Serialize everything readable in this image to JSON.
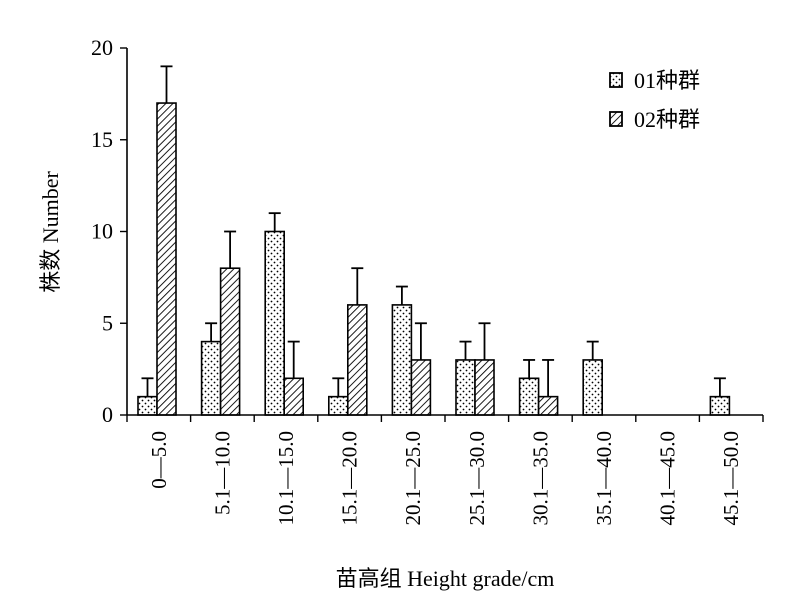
{
  "chart_data": {
    "type": "bar",
    "title": "",
    "xlabel": "苗高组 Height grade/cm",
    "ylabel": "株数 Number",
    "ylim": [
      0,
      20
    ],
    "yticks": [
      0,
      5,
      10,
      15,
      20
    ],
    "grid": false,
    "legend_position": "top-right",
    "categories": [
      "0—5.0",
      "5.1—10.0",
      "10.1—15.0",
      "15.1—20.0",
      "20.1—25.0",
      "25.1—30.0",
      "30.1—35.0",
      "35.1—40.0",
      "40.1—45.0",
      "45.1—50.0"
    ],
    "series": [
      {
        "name": "01种群",
        "pattern": "dots",
        "values": [
          1,
          4,
          10,
          1,
          6,
          3,
          2,
          3,
          0,
          1
        ],
        "error": [
          1,
          1,
          1,
          1,
          1,
          1,
          1,
          1,
          0,
          1
        ]
      },
      {
        "name": "02种群",
        "pattern": "hatch",
        "values": [
          17,
          8,
          2,
          6,
          3,
          3,
          1,
          0,
          0,
          0
        ],
        "error": [
          2,
          2,
          2,
          2,
          2,
          2,
          2,
          0,
          0,
          0
        ]
      }
    ]
  }
}
